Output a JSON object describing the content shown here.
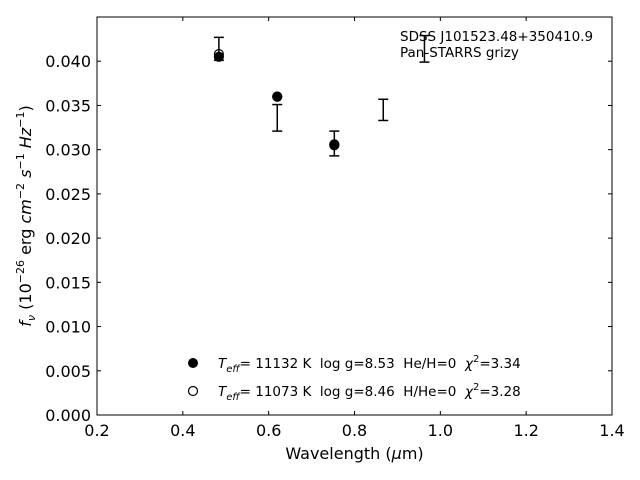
{
  "chart_data": {
    "type": "scatter",
    "title": "",
    "xlabel": "Wavelength",
    "xlabel_unit": "(μm)",
    "ylabel_prefix": "f",
    "ylabel_sub": "ν",
    "ylabel_units_html": "(10^{-26} erg cm^{-2} s^{-1} Hz^{-1})",
    "xlim": [
      0.2,
      1.4
    ],
    "ylim": [
      0.0,
      0.045
    ],
    "xticks": [
      0.2,
      0.4,
      0.6,
      0.8,
      1.0,
      1.2,
      1.4
    ],
    "xtick_labels": [
      "0.2",
      "0.4",
      "0.6",
      "0.8",
      "1.0",
      "1.2",
      "1.4"
    ],
    "yticks": [
      0.0,
      0.005,
      0.01,
      0.015,
      0.02,
      0.025,
      0.03,
      0.035,
      0.04
    ],
    "ytick_labels": [
      "0.000",
      "0.005",
      "0.010",
      "0.015",
      "0.020",
      "0.025",
      "0.030",
      "0.035",
      "0.040"
    ],
    "grid": false,
    "annotation": {
      "line1": "SDSS J101523.48+350410.9",
      "line2": "Pan-STARRS grizy"
    },
    "observed": {
      "x": [
        0.484,
        0.62,
        0.753,
        0.867,
        0.963
      ],
      "y": [
        0.0414,
        0.0336,
        0.0307,
        0.0345,
        0.0414
      ],
      "yerr": [
        0.0013,
        0.0015,
        0.0014,
        0.0012,
        0.0015
      ]
    },
    "series": [
      {
        "name": "T_eff= 11132 K  log g=8.53  He/H=0  χ²=3.34",
        "marker": "filled-circle",
        "x": [
          0.484,
          0.62,
          0.753
        ],
        "y": [
          0.0405,
          0.036,
          0.0305
        ]
      },
      {
        "name": "T_eff= 11073 K  log g=8.46  H/He=0  χ²=3.28",
        "marker": "open-circle",
        "x": [
          0.484,
          0.62,
          0.753
        ],
        "y": [
          0.0408,
          0.036,
          0.0306
        ]
      }
    ],
    "legend": {
      "placement": "lower-center",
      "entries": [
        {
          "teff_label": "T",
          "teff_sub": "eff",
          "text": "= 11132 K  log g=8.53  He/H=0  ",
          "chi": "χ",
          "chi_sup": "2",
          "chi_val": "=3.34",
          "marker": "filled"
        },
        {
          "teff_label": "T",
          "teff_sub": "eff",
          "text": "= 11073 K  log g=8.46  H/He=0  ",
          "chi": "χ",
          "chi_sup": "2",
          "chi_val": "=3.28",
          "marker": "open"
        }
      ]
    },
    "colors": {
      "axis": "#000000",
      "marker": "#000000",
      "background": "#ffffff"
    }
  }
}
